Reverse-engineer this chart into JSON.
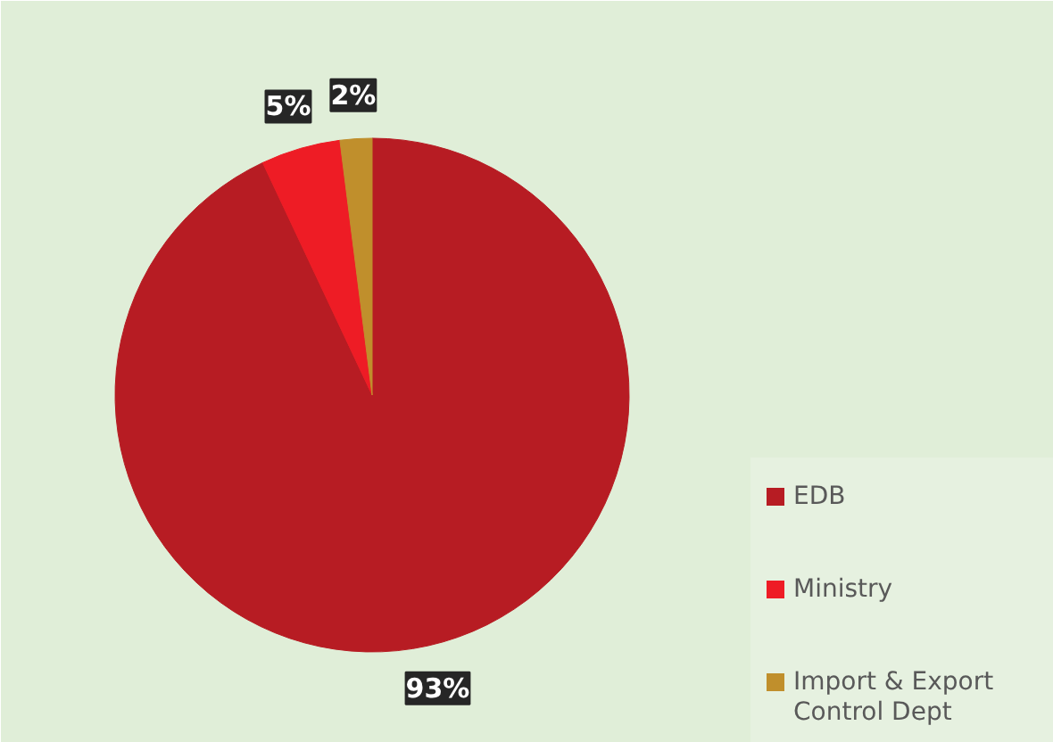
{
  "chart_data": {
    "type": "pie",
    "categories": [
      "EDB",
      "Ministry",
      "Import & Export Control Dept"
    ],
    "values": [
      93,
      5,
      2
    ],
    "colors": [
      "#b71c23",
      "#ee1c25",
      "#c08f2c"
    ],
    "value_labels": [
      "93%",
      "5%",
      "2%"
    ],
    "legend": "right"
  }
}
